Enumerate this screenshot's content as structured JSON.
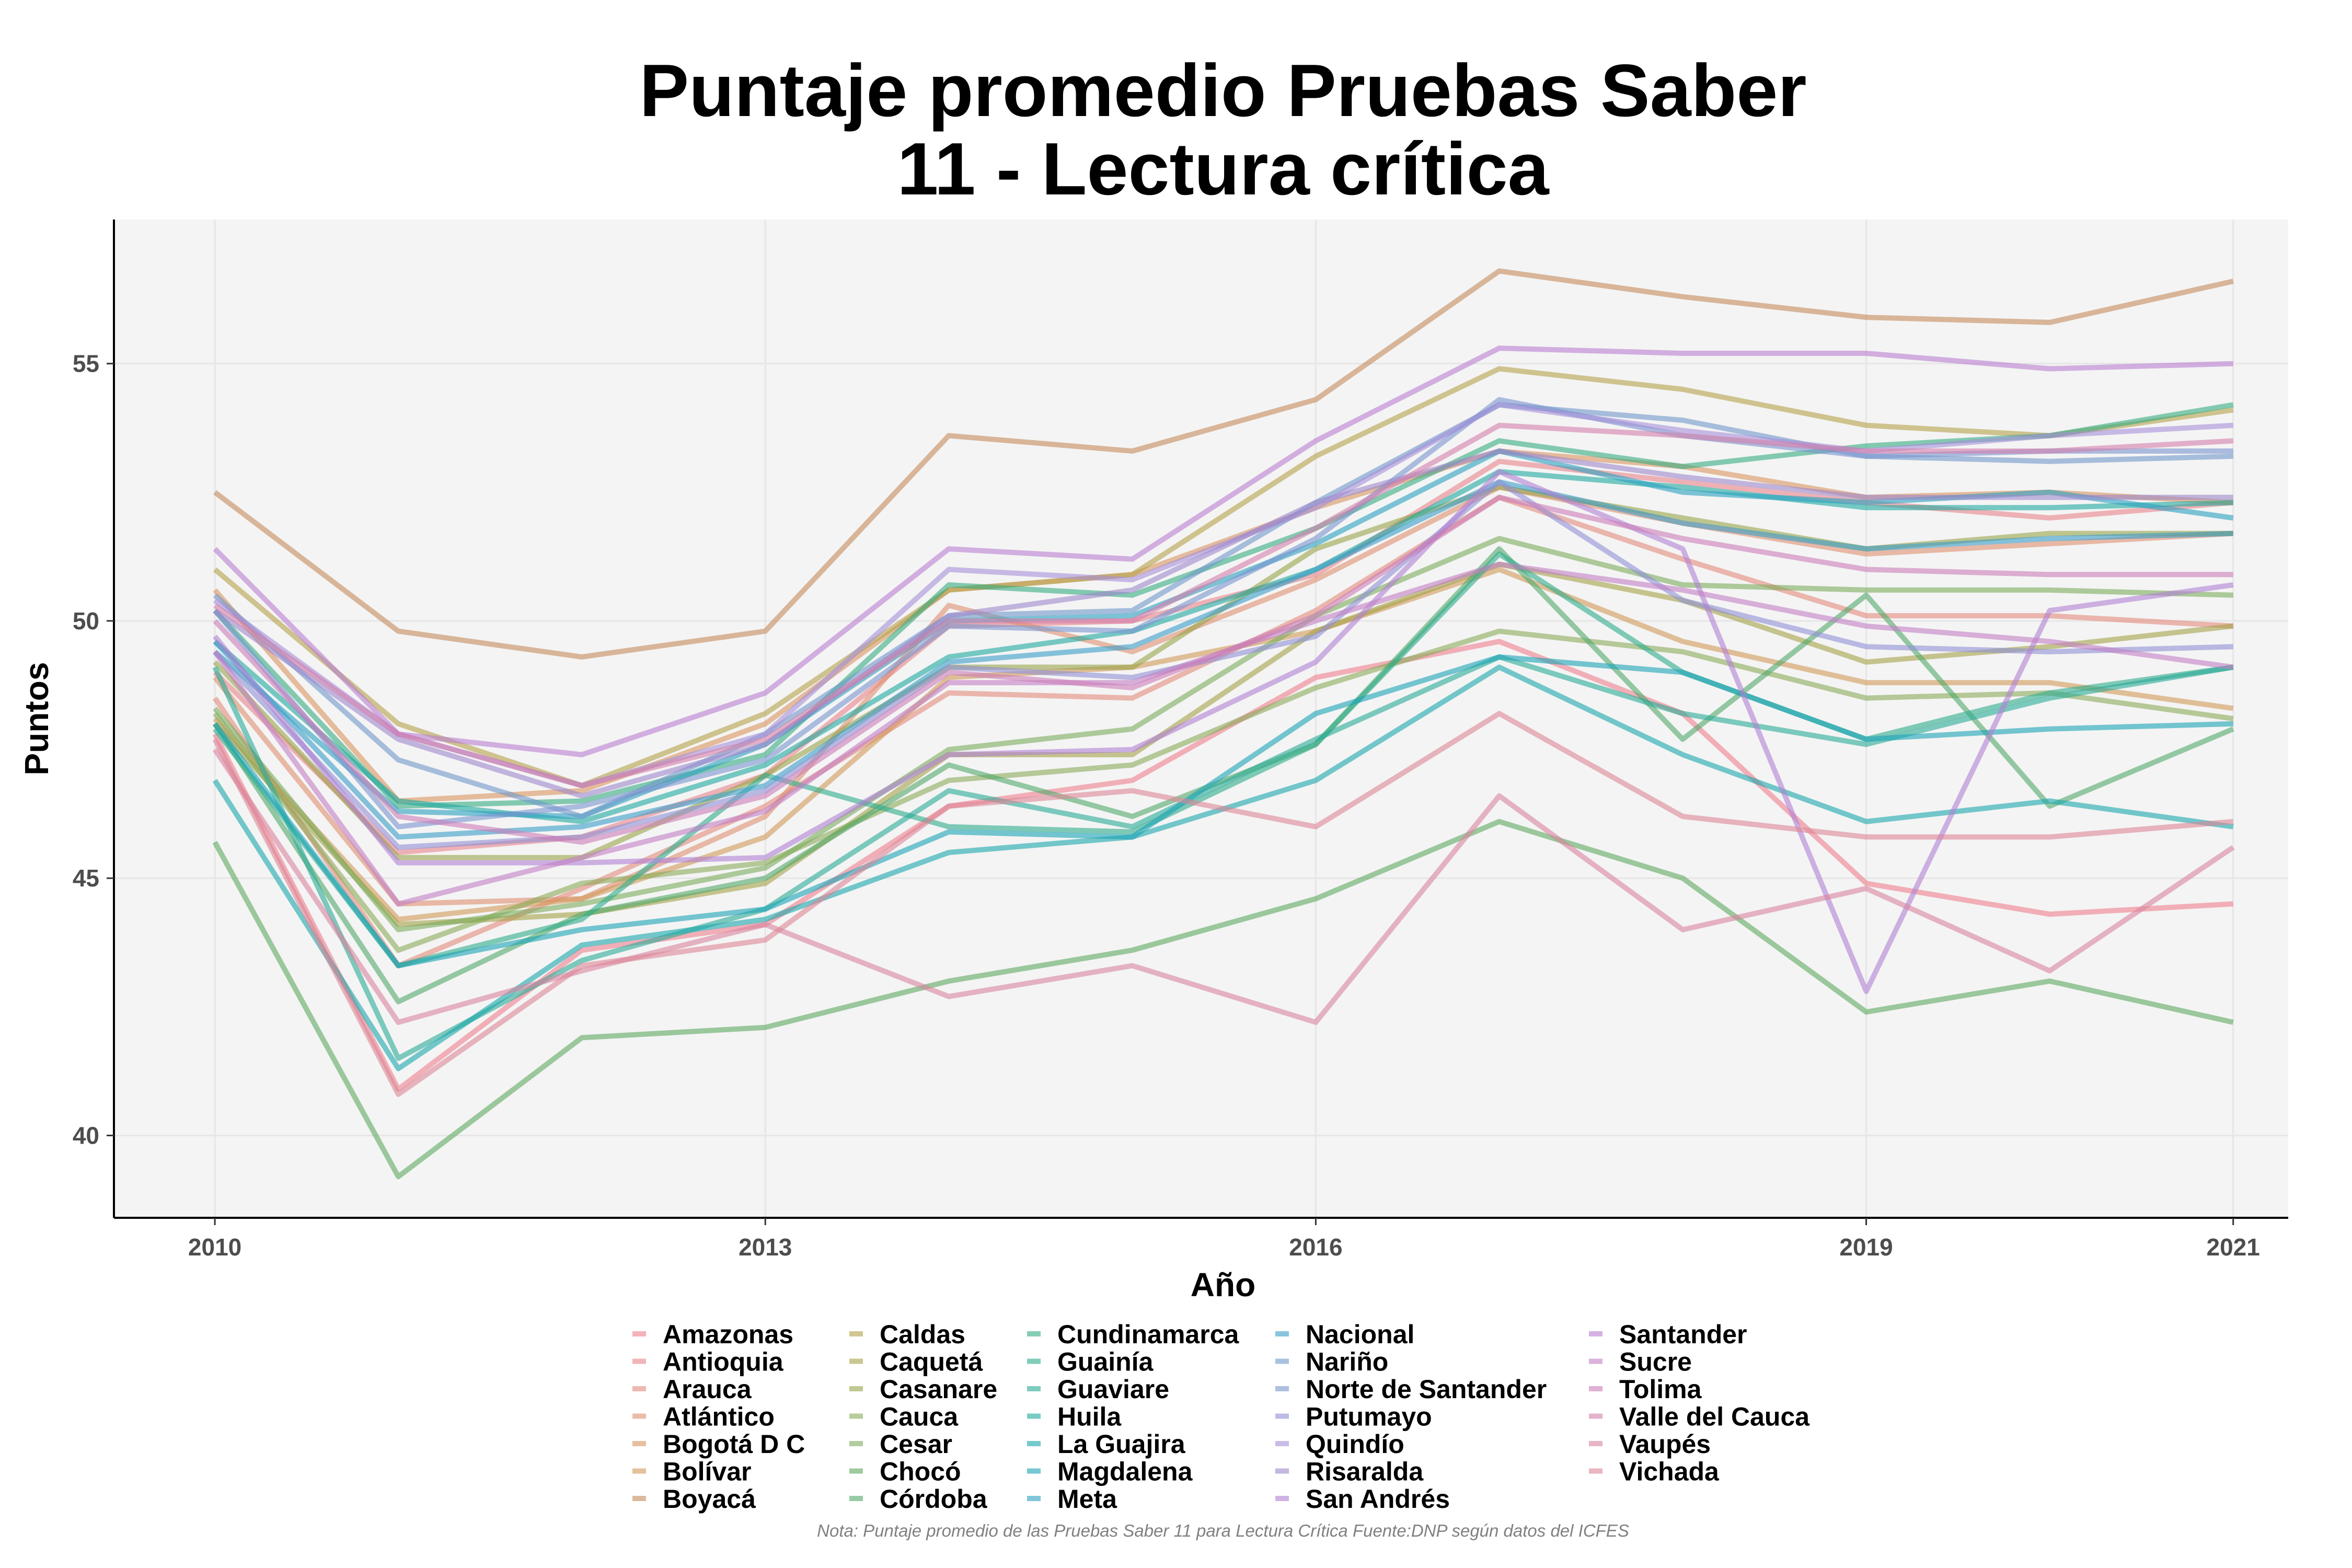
{
  "chart_data": {
    "type": "line",
    "title_lines": [
      "Puntaje promedio Pruebas Saber",
      "11 - Lectura crítica"
    ],
    "xlabel": "Año",
    "ylabel": "Puntos",
    "x": [
      2010,
      2011,
      2012,
      2013,
      2014,
      2015,
      2016,
      2017,
      2018,
      2019,
      2020,
      2021
    ],
    "xticks": [
      2010,
      2013,
      2016,
      2019,
      2021
    ],
    "yticks": [
      40,
      45,
      50,
      55
    ],
    "xlim": [
      2009.45,
      2021.3
    ],
    "ylim": [
      38.4,
      57.8
    ],
    "grid": true,
    "legend_position": "bottom",
    "caption": "Nota: Puntaje promedio de las Pruebas Saber 11 para Lectura Crítica Fuente:DNP según datos del ICFES",
    "series": [
      {
        "name": "Amazonas",
        "color": "#ee7f8e",
        "values": [
          47.8,
          40.9,
          43.6,
          44.1,
          46.4,
          46.9,
          48.9,
          49.6,
          48.2,
          44.9,
          44.3,
          44.5
        ]
      },
      {
        "name": "Antioquia",
        "color": "#e8848a",
        "values": [
          49.0,
          45.5,
          45.8,
          47.0,
          49.9,
          50.0,
          50.9,
          53.1,
          52.7,
          52.3,
          52.0,
          52.3
        ]
      },
      {
        "name": "Arauca",
        "color": "#e38a7b",
        "values": [
          48.5,
          43.3,
          44.8,
          46.4,
          48.6,
          48.5,
          50.2,
          52.4,
          51.2,
          50.1,
          50.1,
          49.9
        ]
      },
      {
        "name": "Atlántico",
        "color": "#dd8f70",
        "values": [
          48.9,
          44.5,
          44.6,
          46.2,
          50.3,
          49.4,
          50.8,
          52.6,
          51.9,
          51.3,
          51.5,
          51.7
        ]
      },
      {
        "name": "Bogotá D C",
        "color": "#d9955f",
        "values": [
          50.6,
          46.5,
          46.7,
          48.0,
          50.6,
          50.9,
          52.2,
          53.3,
          53.0,
          52.4,
          52.5,
          52.3
        ]
      },
      {
        "name": "Bolívar",
        "color": "#d09a58",
        "values": [
          48.1,
          44.2,
          44.6,
          45.8,
          48.9,
          49.1,
          49.8,
          51.0,
          49.6,
          48.8,
          48.8,
          48.3
        ]
      },
      {
        "name": "Boyacá",
        "color": "#c48a5c",
        "values": [
          52.5,
          49.8,
          49.3,
          49.8,
          53.6,
          53.3,
          54.3,
          56.8,
          56.3,
          55.9,
          55.8,
          56.6
        ]
      },
      {
        "name": "Caldas",
        "color": "#b4a14a",
        "values": [
          51.0,
          48.0,
          46.8,
          48.2,
          50.6,
          50.9,
          53.2,
          54.9,
          54.5,
          53.8,
          53.6,
          54.1
        ]
      },
      {
        "name": "Caquetá",
        "color": "#a4a148",
        "values": [
          48.0,
          44.1,
          44.3,
          44.9,
          47.4,
          47.4,
          49.8,
          51.1,
          50.4,
          49.2,
          49.5,
          49.9
        ]
      },
      {
        "name": "Casanare",
        "color": "#98a34a",
        "values": [
          49.2,
          45.4,
          45.4,
          47.0,
          49.1,
          49.1,
          51.4,
          52.6,
          52.0,
          51.4,
          51.7,
          51.7
        ]
      },
      {
        "name": "Cauca",
        "color": "#8aaa58",
        "values": [
          48.2,
          43.6,
          44.9,
          45.3,
          46.9,
          47.2,
          48.7,
          49.8,
          49.4,
          48.5,
          48.6,
          48.1
        ]
      },
      {
        "name": "Cesar",
        "color": "#7bac5c",
        "values": [
          48.3,
          44.0,
          44.5,
          45.2,
          47.5,
          47.9,
          50.1,
          51.6,
          50.7,
          50.6,
          50.6,
          50.5
        ]
      },
      {
        "name": "Chocó",
        "color": "#5da85f",
        "values": [
          45.7,
          39.2,
          41.9,
          42.1,
          43.0,
          43.6,
          44.6,
          46.1,
          45.0,
          42.4,
          43.0,
          42.2
        ]
      },
      {
        "name": "Córdoba",
        "color": "#52a86a",
        "values": [
          48.0,
          42.6,
          44.3,
          45.0,
          47.2,
          46.2,
          47.6,
          51.4,
          47.7,
          50.5,
          46.4,
          47.9
        ]
      },
      {
        "name": "Cundinamarca",
        "color": "#35ab80",
        "values": [
          50.2,
          46.4,
          46.5,
          47.4,
          50.7,
          50.5,
          51.8,
          53.5,
          53.0,
          53.4,
          53.6,
          54.2
        ]
      },
      {
        "name": "Guainía",
        "color": "#2fac8c",
        "values": [
          47.9,
          43.3,
          44.2,
          47.0,
          46.0,
          45.9,
          47.6,
          51.3,
          49.0,
          47.7,
          48.6,
          49.1
        ]
      },
      {
        "name": "Guaviare",
        "color": "#29aa96",
        "values": [
          49.1,
          41.5,
          43.4,
          44.4,
          46.7,
          46.0,
          47.7,
          49.3,
          48.2,
          47.6,
          48.5,
          49.1
        ]
      },
      {
        "name": "Huila",
        "color": "#1fa8a0",
        "values": [
          49.6,
          46.5,
          46.1,
          47.2,
          49.3,
          49.8,
          51.0,
          52.9,
          52.6,
          52.2,
          52.2,
          52.3
        ]
      },
      {
        "name": "La Guajira",
        "color": "#1aa6ab",
        "values": [
          46.9,
          41.3,
          43.7,
          44.2,
          45.5,
          45.8,
          46.9,
          49.1,
          47.4,
          46.1,
          46.5,
          46.0
        ]
      },
      {
        "name": "Magdalena",
        "color": "#1aa3b5",
        "values": [
          48.0,
          43.3,
          44.0,
          44.4,
          45.9,
          45.8,
          48.2,
          49.3,
          49.0,
          47.7,
          47.9,
          48.0
        ]
      },
      {
        "name": "Meta",
        "color": "#2aa0bf",
        "values": [
          49.4,
          46.3,
          46.2,
          47.6,
          50.0,
          50.1,
          51.5,
          53.3,
          52.5,
          52.3,
          52.5,
          52.0
        ]
      },
      {
        "name": "Nacional",
        "color": "#3b9dc8",
        "values": [
          49.6,
          45.8,
          46.0,
          46.8,
          49.2,
          49.5,
          51.0,
          52.7,
          51.9,
          51.4,
          51.6,
          51.7
        ]
      },
      {
        "name": "Nariño",
        "color": "#6f97c9",
        "values": [
          50.5,
          47.3,
          46.2,
          47.8,
          50.1,
          50.2,
          52.3,
          54.2,
          53.9,
          53.2,
          53.1,
          53.2
        ]
      },
      {
        "name": "Norte de Santander",
        "color": "#7a95cf",
        "values": [
          50.2,
          46.0,
          46.4,
          47.3,
          49.9,
          49.8,
          51.6,
          54.3,
          53.6,
          53.2,
          53.3,
          53.3
        ]
      },
      {
        "name": "Putumayo",
        "color": "#9090d6",
        "values": [
          49.4,
          45.6,
          45.8,
          46.7,
          49.1,
          48.9,
          49.7,
          52.7,
          50.4,
          49.5,
          49.4,
          49.5
        ]
      },
      {
        "name": "Quindío",
        "color": "#a78fd8",
        "values": [
          50.4,
          47.8,
          46.8,
          47.8,
          51.0,
          50.8,
          52.2,
          54.2,
          53.7,
          53.3,
          53.6,
          53.8
        ]
      },
      {
        "name": "Risaralda",
        "color": "#9c87cc",
        "values": [
          50.2,
          47.7,
          46.6,
          47.6,
          50.1,
          50.6,
          52.3,
          53.3,
          52.8,
          52.4,
          52.4,
          52.4
        ]
      },
      {
        "name": "San Andrés",
        "color": "#b081d4",
        "values": [
          49.7,
          45.3,
          45.3,
          45.4,
          47.4,
          47.5,
          49.2,
          52.9,
          51.4,
          42.8,
          50.2,
          50.7
        ]
      },
      {
        "name": "Santander",
        "color": "#b97fd0",
        "values": [
          51.4,
          47.8,
          47.4,
          48.6,
          51.4,
          51.2,
          53.5,
          55.3,
          55.2,
          55.2,
          54.9,
          55.0
        ]
      },
      {
        "name": "Sucre",
        "color": "#c27ec4",
        "values": [
          49.4,
          44.5,
          45.4,
          46.3,
          48.8,
          48.8,
          50.0,
          51.1,
          50.6,
          49.9,
          49.6,
          49.1
        ]
      },
      {
        "name": "Tolima",
        "color": "#cc7db8",
        "values": [
          50.0,
          46.2,
          45.7,
          46.6,
          49.0,
          48.7,
          50.1,
          52.4,
          51.6,
          51.0,
          50.9,
          50.9
        ]
      },
      {
        "name": "Valle del Cauca",
        "color": "#d47fac",
        "values": [
          50.3,
          47.8,
          46.8,
          47.7,
          50.0,
          50.0,
          51.8,
          53.8,
          53.6,
          53.3,
          53.3,
          53.5
        ]
      },
      {
        "name": "Vaupés",
        "color": "#d8839e",
        "values": [
          47.5,
          42.2,
          43.2,
          44.1,
          42.7,
          43.3,
          42.2,
          46.6,
          44.0,
          44.8,
          43.2,
          45.6
        ]
      },
      {
        "name": "Vichada",
        "color": "#dc8596",
        "values": [
          47.7,
          40.8,
          43.3,
          43.8,
          46.4,
          46.7,
          46.0,
          48.2,
          46.2,
          45.8,
          45.8,
          46.1
        ]
      }
    ]
  }
}
